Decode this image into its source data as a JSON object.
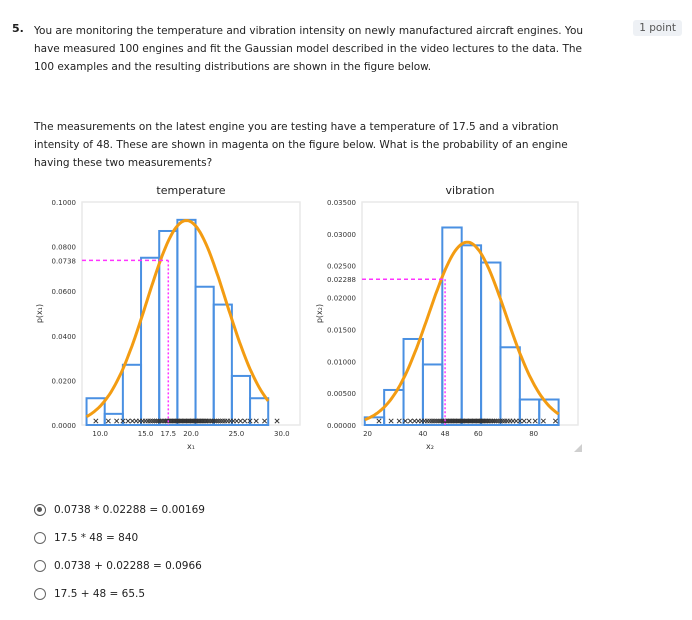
{
  "question": {
    "number": "5.",
    "points": "1 point",
    "paragraph1": "You are monitoring the temperature and vibration intensity on newly manufactured aircraft engines. You have measured 100 engines and fit the Gaussian model described in the video lectures to the data. The 100 examples and the resulting distributions are shown in the figure below.",
    "paragraph2": "The measurements on the latest engine you are testing have a temperature of 17.5 and a vibration intensity of 48. These are shown in magenta on the figure below. What is the probability of an engine having these two measurements?"
  },
  "colors": {
    "hist": "#4a90e2",
    "curve": "#f39c12",
    "marker": "#ff33ff",
    "grid": "#e9e9e9"
  },
  "chart_data": [
    {
      "type": "bar",
      "title": "temperature",
      "xlabel": "x₁",
      "ylabel": "p(x₁)",
      "x_ticks": [
        "10.0",
        "15.0",
        "17.5",
        "20.0",
        "25.0",
        "30.0"
      ],
      "y_ticks": [
        "0.0000",
        "0.0200",
        "0.0400",
        "0.0600",
        "0.0738",
        "0.0800",
        "0.1000"
      ],
      "xlim": [
        8.0,
        32.0
      ],
      "ylim": [
        0.0,
        0.1
      ],
      "bins": [
        {
          "x0": 8.5,
          "x1": 10.5,
          "y": 0.012
        },
        {
          "x0": 10.5,
          "x1": 12.5,
          "y": 0.005
        },
        {
          "x0": 12.5,
          "x1": 14.5,
          "y": 0.027
        },
        {
          "x0": 14.5,
          "x1": 16.5,
          "y": 0.075
        },
        {
          "x0": 16.5,
          "x1": 18.5,
          "y": 0.087
        },
        {
          "x0": 18.5,
          "x1": 20.5,
          "y": 0.092
        },
        {
          "x0": 20.5,
          "x1": 22.5,
          "y": 0.062
        },
        {
          "x0": 22.5,
          "x1": 24.5,
          "y": 0.054
        },
        {
          "x0": 24.5,
          "x1": 26.5,
          "y": 0.022
        },
        {
          "x0": 26.5,
          "x1": 28.5,
          "y": 0.012
        }
      ],
      "gaussian": {
        "mean": 19.5,
        "std": 4.35
      },
      "marker": {
        "x": 17.5,
        "y": 0.0738
      }
    },
    {
      "type": "bar",
      "title": "vibration",
      "xlabel": "x₂",
      "ylabel": "p(x₂)",
      "x_ticks": [
        "20",
        "40",
        "48",
        "60",
        "80"
      ],
      "y_ticks": [
        "0.00000",
        "0.00500",
        "0.01000",
        "0.01500",
        "0.02000",
        "0.02288",
        "0.02500",
        "0.03000",
        "0.03500"
      ],
      "xlim": [
        18.0,
        96.0
      ],
      "ylim": [
        0.0,
        0.035
      ],
      "bins": [
        {
          "x0": 19.0,
          "x1": 26.0,
          "y": 0.0012
        },
        {
          "x0": 26.0,
          "x1": 33.0,
          "y": 0.0055
        },
        {
          "x0": 33.0,
          "x1": 40.0,
          "y": 0.0135
        },
        {
          "x0": 40.0,
          "x1": 47.0,
          "y": 0.0095
        },
        {
          "x0": 47.0,
          "x1": 54.0,
          "y": 0.031
        },
        {
          "x0": 54.0,
          "x1": 61.0,
          "y": 0.0282
        },
        {
          "x0": 61.0,
          "x1": 68.0,
          "y": 0.0255
        },
        {
          "x0": 68.0,
          "x1": 75.0,
          "y": 0.0122
        },
        {
          "x0": 75.0,
          "x1": 82.0,
          "y": 0.004
        },
        {
          "x0": 82.0,
          "x1": 89.0,
          "y": 0.004
        }
      ],
      "gaussian": {
        "mean": 56.0,
        "std": 13.9
      },
      "marker": {
        "x": 48,
        "y": 0.02288
      }
    }
  ],
  "options": [
    {
      "label": "0.0738 * 0.02288 = 0.00169",
      "selected": true
    },
    {
      "label": "17.5 * 48 = 840",
      "selected": false
    },
    {
      "label": "0.0738 + 0.02288 = 0.0966",
      "selected": false
    },
    {
      "label": "17.5 + 48 = 65.5",
      "selected": false
    }
  ]
}
